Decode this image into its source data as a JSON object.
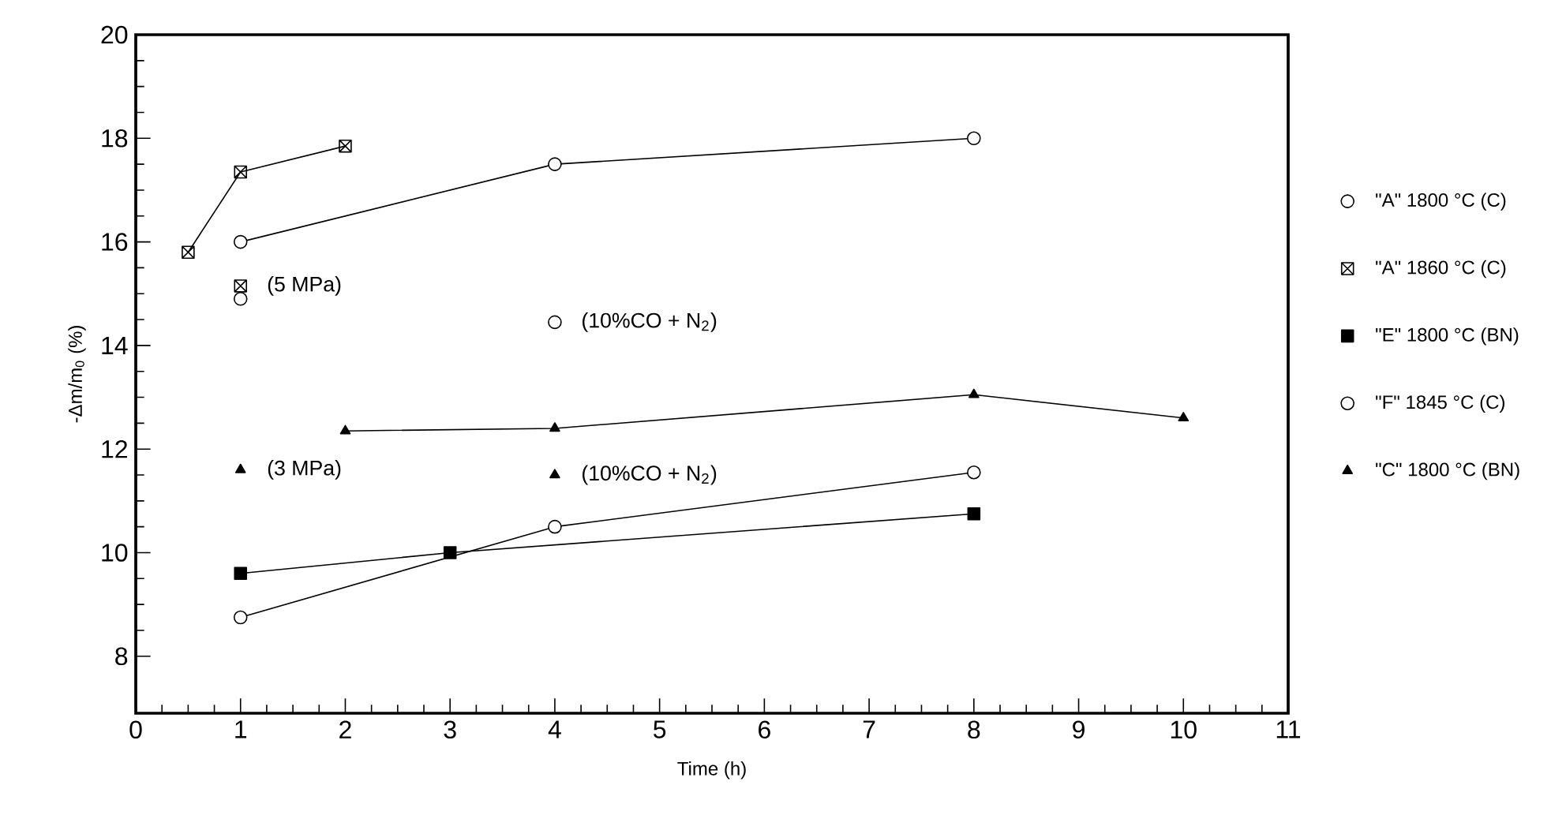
{
  "chart_data": {
    "type": "line",
    "xlabel": "Time  (h)",
    "ylabel": "-Δm/m$_{0}$ (%)",
    "xlim": [
      0,
      11
    ],
    "xticks": [
      0,
      1,
      2,
      3,
      4,
      5,
      6,
      7,
      8,
      9,
      10,
      11
    ],
    "ylim": [
      6.9,
      20
    ],
    "yticks": [
      8,
      10,
      12,
      14,
      16,
      18,
      20
    ],
    "legend": "right",
    "line_style": "solid",
    "series": [
      {
        "name": "\"A\" 1800 °C (C)",
        "color": "#000000",
        "marker": "circle",
        "x": [
          1,
          4,
          8
        ],
        "values": [
          16.0,
          17.5,
          18.0
        ]
      },
      {
        "name": "\"A\" 1860 °C (C)",
        "color": "#000000",
        "marker": "cross",
        "x": [
          0.5,
          1,
          2
        ],
        "values": [
          15.8,
          17.35,
          17.85
        ]
      },
      {
        "name": "\"E\" 1800 °C (BN)",
        "color": "#000000",
        "marker": "square",
        "x": [
          1,
          3,
          8
        ],
        "values": [
          9.6,
          10.0,
          10.75
        ]
      },
      {
        "name": "\"F\" 1845 °C (C)",
        "color": "#000000",
        "marker": "circle",
        "x": [
          1,
          4,
          8
        ],
        "values": [
          8.75,
          10.5,
          11.55
        ]
      },
      {
        "name": "\"C\" 1800 °C (BN)",
        "color": "#000000",
        "marker": "triangle",
        "x": [
          2,
          4,
          8,
          10
        ],
        "values": [
          12.35,
          12.4,
          13.05,
          12.6
        ]
      },
      {
        "type": "scatter",
        "color": "#000000",
        "marker": "circle",
        "x": [
          1
        ],
        "values": [
          14.9
        ]
      },
      {
        "type": "scatter",
        "name": "(5 MPa)",
        "color": "#000000",
        "marker": "cross",
        "x": [
          1
        ],
        "values": [
          15.15
        ]
      },
      {
        "type": "scatter",
        "name": "(10%CO + N$_{2}$)",
        "color": "#000000",
        "marker": "circle",
        "x": [
          4
        ],
        "values": [
          14.45
        ]
      },
      {
        "type": "scatter",
        "name": "(3 MPa)",
        "color": "#000000",
        "marker": "triangle",
        "x": [
          1
        ],
        "values": [
          11.6
        ]
      },
      {
        "type": "scatter",
        "name": "(10%CO + N$_{2}$)",
        "color": "#000000",
        "marker": "triangle",
        "x": [
          4
        ],
        "values": [
          11.5
        ]
      }
    ]
  }
}
